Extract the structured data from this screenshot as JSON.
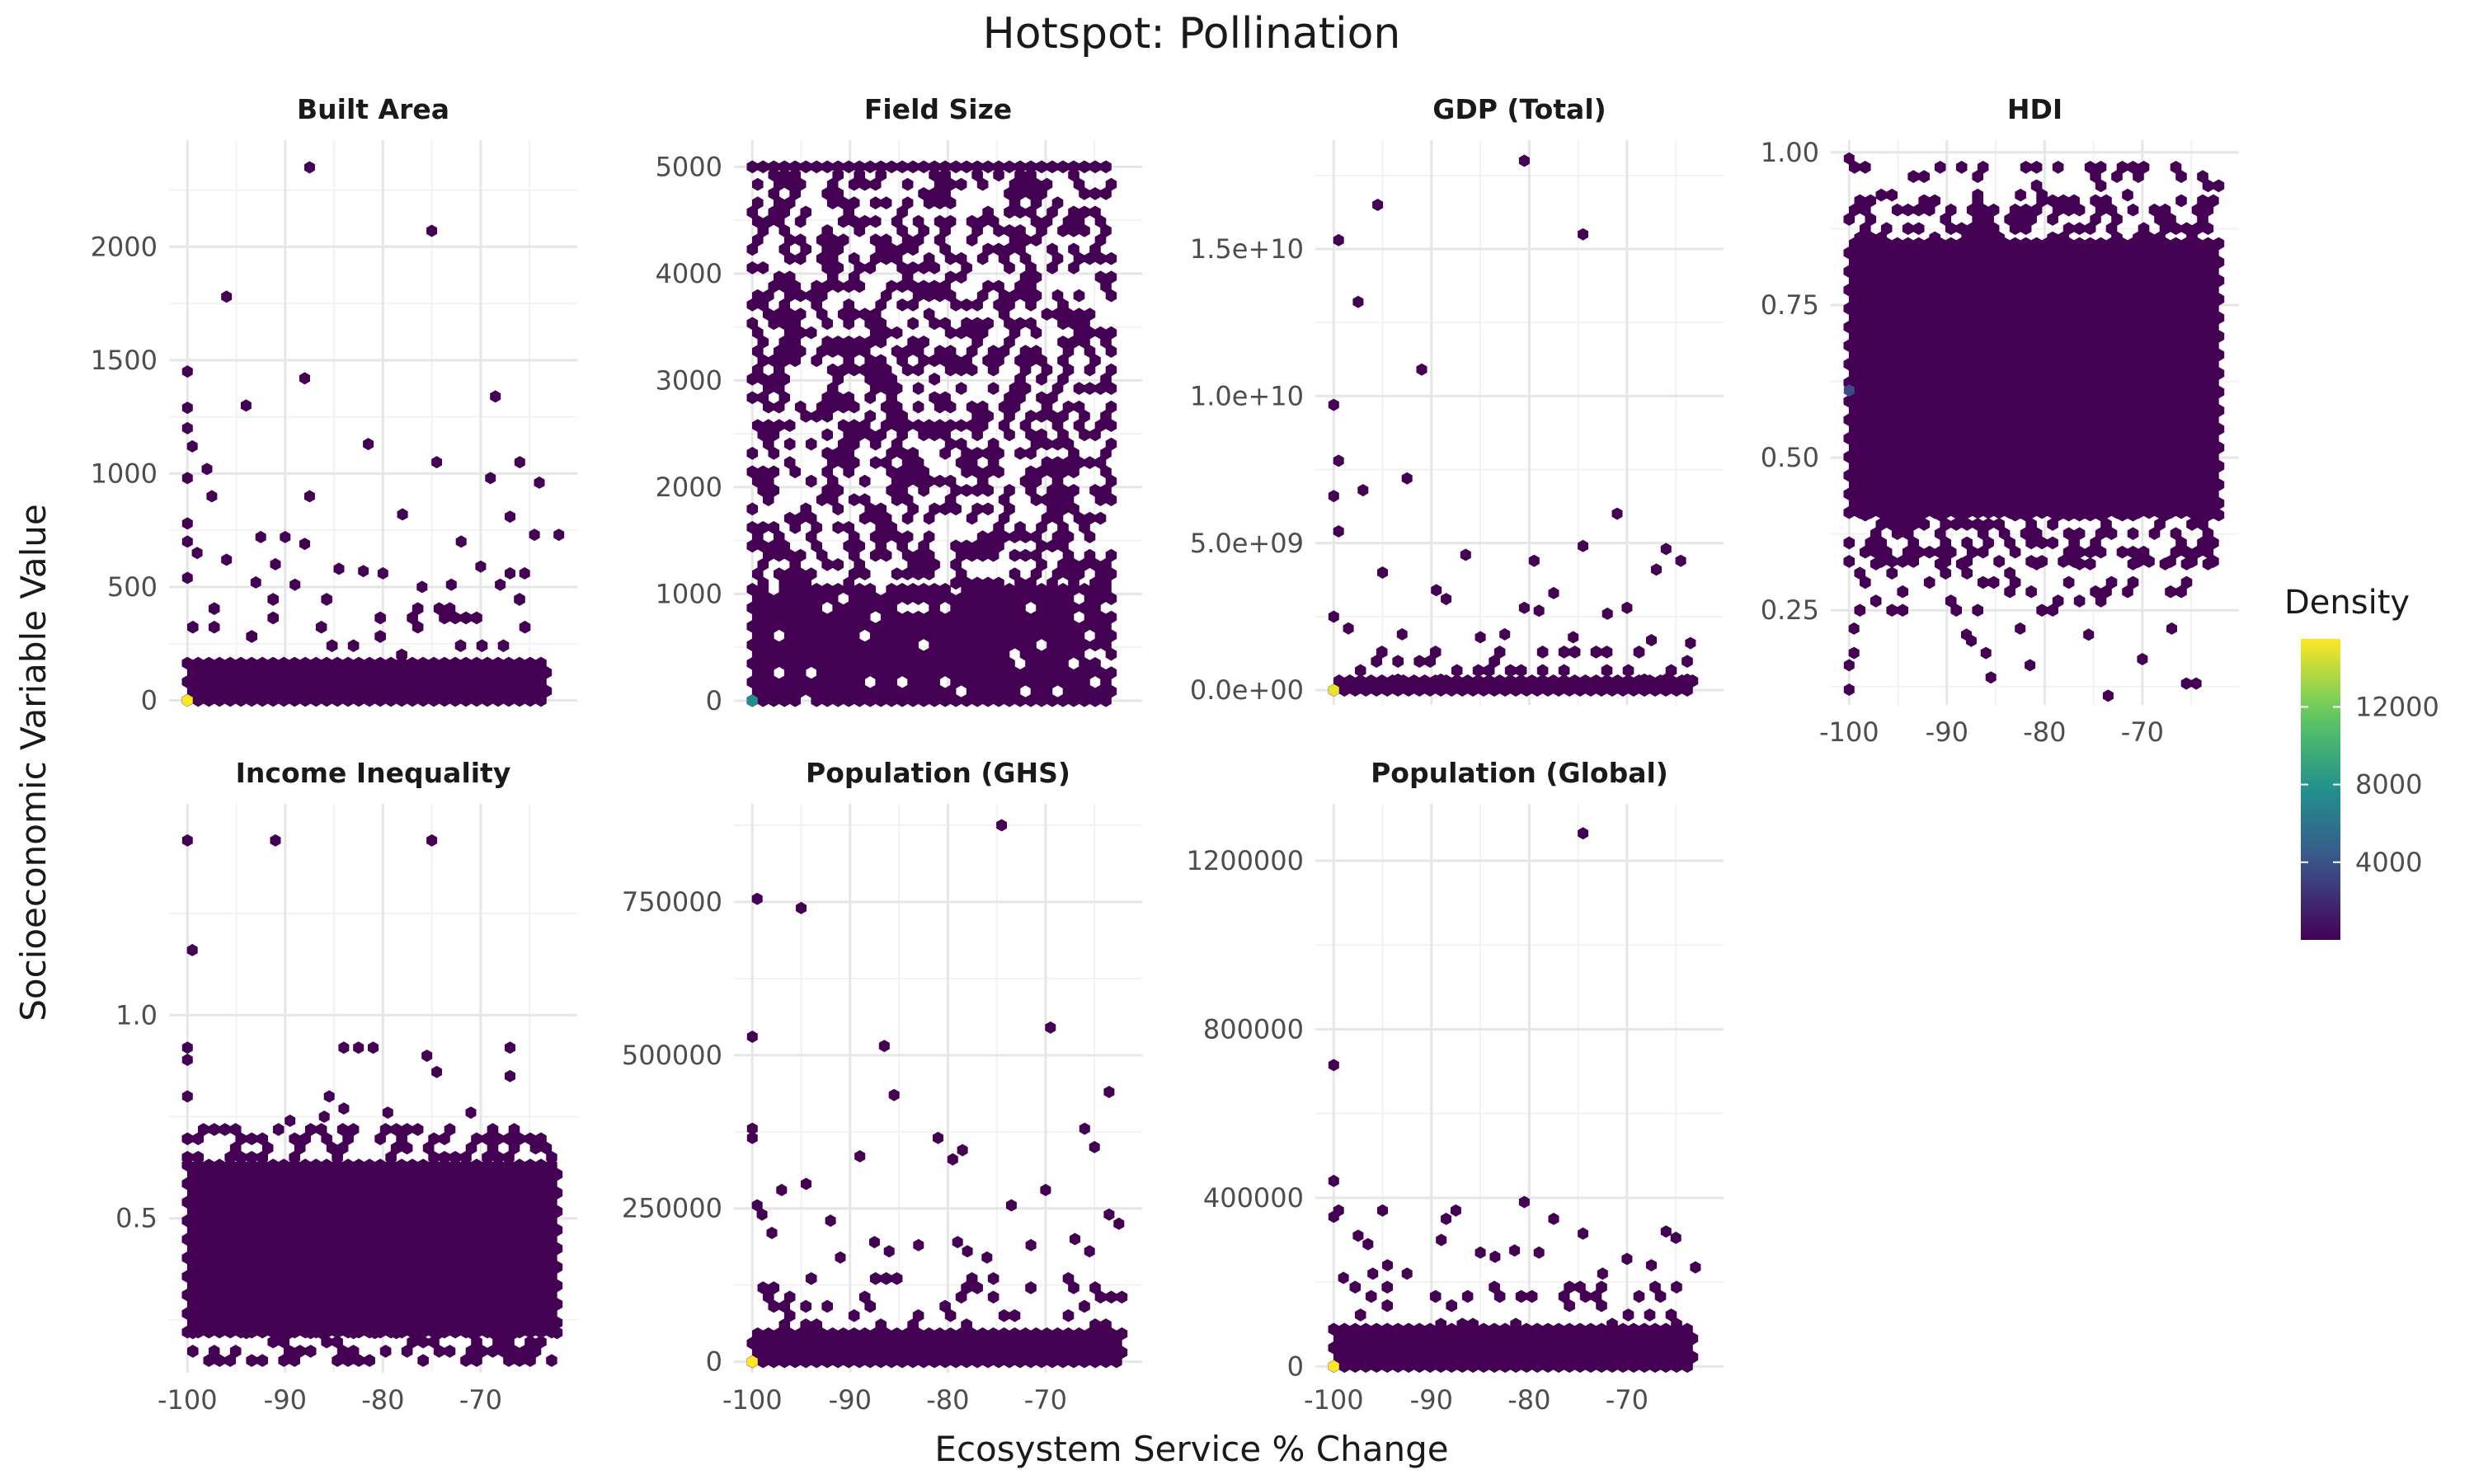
{
  "chart_data": {
    "type": "hexbin",
    "title": "Hotspot: Pollination",
    "xlabel": "Ecosystem Service % Change",
    "ylabel": "Socioeconomic Variable Value",
    "grid": true,
    "legend": {
      "title": "Density",
      "placement": "right",
      "min": 0,
      "max": 15500,
      "ticks": [
        4000,
        8000,
        12000
      ],
      "tick_labels": [
        "4000",
        "8000",
        "12000"
      ],
      "colormap": "viridis",
      "colors": [
        "#440154",
        "#3b528b",
        "#21918c",
        "#5ec962",
        "#fde725"
      ]
    },
    "x_range": [
      -100,
      -62
    ],
    "x_ticks": [
      -100,
      -90,
      -80,
      -70
    ],
    "x_tick_labels": [
      "-100",
      "-90",
      "-80",
      "-70"
    ],
    "panels": [
      {
        "name": "Built Area",
        "ylim": [
          -20,
          2470
        ],
        "y_ticks": [
          0,
          500,
          1000,
          1500,
          2000
        ],
        "y_tick_labels": [
          "0",
          "500",
          "1000",
          "1500",
          "2000"
        ],
        "dense_bands": [
          {
            "x": [
              -100,
              -63
            ],
            "y": [
              0,
              200
            ],
            "fill": 1.0
          },
          {
            "x": [
              -100,
              -63
            ],
            "y": [
              200,
              450
            ],
            "fill": 0.15
          }
        ],
        "points": [
          [
            -87.5,
            2350
          ],
          [
            -75,
            2070
          ],
          [
            -96,
            1780
          ],
          [
            -100,
            1450
          ],
          [
            -88,
            1420
          ],
          [
            -68.5,
            1340
          ],
          [
            -94,
            1300
          ],
          [
            -100,
            1290
          ],
          [
            -100,
            1200
          ],
          [
            -81.5,
            1130
          ],
          [
            -99.5,
            1120
          ],
          [
            -74.5,
            1050
          ],
          [
            -66,
            1050
          ],
          [
            -98,
            1020
          ],
          [
            -100,
            980
          ],
          [
            -69,
            980
          ],
          [
            -64,
            960
          ],
          [
            -97.5,
            900
          ],
          [
            -87.5,
            900
          ],
          [
            -78,
            820
          ],
          [
            -67,
            810
          ],
          [
            -100,
            780
          ],
          [
            -62,
            730
          ],
          [
            -64.5,
            730
          ],
          [
            -92.5,
            720
          ],
          [
            -90,
            720
          ],
          [
            -100,
            700
          ],
          [
            -88,
            690
          ],
          [
            -72,
            700
          ],
          [
            -99,
            650
          ],
          [
            -96,
            620
          ],
          [
            -91,
            600
          ],
          [
            -84.5,
            580
          ],
          [
            -82,
            570
          ],
          [
            -80,
            560
          ],
          [
            -70,
            590
          ],
          [
            -67,
            560
          ],
          [
            -65.5,
            560
          ],
          [
            -100,
            540
          ],
          [
            -93,
            520
          ],
          [
            -89,
            510
          ],
          [
            -76,
            500
          ],
          [
            -73,
            510
          ],
          [
            -68,
            510
          ]
        ],
        "hot": [
          [
            -100,
            0,
            15500
          ]
        ]
      },
      {
        "name": "Field Size",
        "ylim": [
          -40,
          5250
        ],
        "y_ticks": [
          0,
          1000,
          2000,
          3000,
          4000,
          5000
        ],
        "y_tick_labels": [
          "0",
          "1000",
          "2000",
          "3000",
          "4000",
          "5000"
        ],
        "dense_bands": [
          {
            "x": [
              -100,
              -63
            ],
            "y": [
              0,
              1100
            ],
            "fill": 0.92
          },
          {
            "x": [
              -100,
              -63
            ],
            "y": [
              1100,
              5000
            ],
            "fill": 0.5
          },
          {
            "x": [
              -100,
              -63
            ],
            "y": [
              5000,
              5040
            ],
            "fill": 1.0
          }
        ],
        "points": [],
        "hot": [
          [
            -100,
            0,
            7500
          ]
        ]
      },
      {
        "name": "GDP (Total)",
        "ylim": [
          -500000000.0,
          18700000000.0
        ],
        "y_ticks": [
          0,
          5000000000.0,
          10000000000.0,
          15000000000.0
        ],
        "y_tick_labels": [
          "0.0e+00",
          "5.0e+09",
          "1.0e+10",
          "1.5e+10"
        ],
        "dense_bands": [
          {
            "x": [
              -100,
              -63
            ],
            "y": [
              0,
              350000000.0
            ],
            "fill": 1.0
          },
          {
            "x": [
              -100,
              -63
            ],
            "y": [
              350000000.0,
              1300000000.0
            ],
            "fill": 0.2
          }
        ],
        "points": [
          [
            -80.5,
            18000000000.0
          ],
          [
            -99.5,
            15300000000.0
          ],
          [
            -74.5,
            15500000000.0
          ],
          [
            -95.5,
            16500000000.0
          ],
          [
            -97.5,
            13200000000.0
          ],
          [
            -91,
            10900000000.0
          ],
          [
            -100,
            9700000000.0
          ],
          [
            -99.5,
            7800000000.0
          ],
          [
            -92.5,
            7200000000.0
          ],
          [
            -97,
            6800000000.0
          ],
          [
            -100,
            6600000000.0
          ],
          [
            -71,
            6000000000.0
          ],
          [
            -99.5,
            5400000000.0
          ],
          [
            -74.5,
            4900000000.0
          ],
          [
            -66,
            4800000000.0
          ],
          [
            -86.5,
            4600000000.0
          ],
          [
            -79.5,
            4400000000.0
          ],
          [
            -64.5,
            4400000000.0
          ],
          [
            -95,
            4000000000.0
          ],
          [
            -67,
            4100000000.0
          ],
          [
            -89.5,
            3400000000.0
          ],
          [
            -88.5,
            3100000000.0
          ],
          [
            -77.5,
            3300000000.0
          ],
          [
            -80.5,
            2800000000.0
          ],
          [
            -79,
            2700000000.0
          ],
          [
            -70,
            2800000000.0
          ],
          [
            -72,
            2600000000.0
          ],
          [
            -100,
            2500000000.0
          ],
          [
            -98.5,
            2100000000.0
          ],
          [
            -93,
            1900000000.0
          ],
          [
            -85,
            1800000000.0
          ],
          [
            -82.5,
            1900000000.0
          ],
          [
            -75.5,
            1800000000.0
          ],
          [
            -67.5,
            1700000000.0
          ],
          [
            -63.5,
            1600000000.0
          ]
        ],
        "hot": [
          [
            -100,
            0,
            15000
          ]
        ]
      },
      {
        "name": "HDI",
        "ylim": [
          0.095,
          1.02
        ],
        "y_ticks": [
          0.25,
          0.5,
          0.75,
          1.0
        ],
        "y_tick_labels": [
          "0.25",
          "0.50",
          "0.75",
          "1.00"
        ],
        "dense_bands": [
          {
            "x": [
              -100,
              -62
            ],
            "y": [
              0.41,
              0.86
            ],
            "fill": 1.0
          },
          {
            "x": [
              -100,
              -62
            ],
            "y": [
              0.33,
              0.41
            ],
            "fill": 0.55
          },
          {
            "x": [
              -100,
              -62
            ],
            "y": [
              0.86,
              0.93
            ],
            "fill": 0.55
          },
          {
            "x": [
              -100,
              -62
            ],
            "y": [
              0.25,
              0.33
            ],
            "fill": 0.2
          },
          {
            "x": [
              -100,
              -62
            ],
            "y": [
              0.93,
              0.98
            ],
            "fill": 0.2
          }
        ],
        "points": [
          [
            -100,
            0.99
          ],
          [
            -73.5,
            0.11
          ],
          [
            -64.5,
            0.13
          ],
          [
            -65.5,
            0.13
          ],
          [
            -100,
            0.12
          ],
          [
            -85.5,
            0.14
          ],
          [
            -70,
            0.17
          ],
          [
            -86,
            0.18
          ],
          [
            -81.5,
            0.16
          ],
          [
            -87.5,
            0.2
          ],
          [
            -88,
            0.21
          ],
          [
            -82.5,
            0.22
          ],
          [
            -67,
            0.22
          ],
          [
            -75.5,
            0.21
          ],
          [
            -99.5,
            0.18
          ],
          [
            -99.5,
            0.22
          ],
          [
            -100,
            0.16
          ]
        ],
        "hot": [
          [
            -100,
            0.61,
            3500
          ]
        ]
      },
      {
        "name": "Income Inequality",
        "ylim": [
          0.12,
          1.52
        ],
        "y_ticks": [
          0.5,
          1.0
        ],
        "y_tick_labels": [
          "0.5",
          "1.0"
        ],
        "dense_bands": [
          {
            "x": [
              -100,
              -62
            ],
            "y": [
              0.22,
              0.65
            ],
            "fill": 1.0
          },
          {
            "x": [
              -100,
              -62
            ],
            "y": [
              0.65,
              0.72
            ],
            "fill": 0.45
          },
          {
            "x": [
              -100,
              -62
            ],
            "y": [
              0.15,
              0.22
            ],
            "fill": 0.45
          }
        ],
        "points": [
          [
            -100,
            1.43
          ],
          [
            -91,
            1.43
          ],
          [
            -75,
            1.43
          ],
          [
            -99.5,
            1.16
          ],
          [
            -100,
            0.92
          ],
          [
            -100,
            0.89
          ],
          [
            -84,
            0.92
          ],
          [
            -82.5,
            0.92
          ],
          [
            -81,
            0.92
          ],
          [
            -75.5,
            0.9
          ],
          [
            -67,
            0.92
          ],
          [
            -74.5,
            0.86
          ],
          [
            -67,
            0.85
          ],
          [
            -85.5,
            0.8
          ],
          [
            -100,
            0.8
          ],
          [
            -84,
            0.77
          ],
          [
            -79.5,
            0.76
          ],
          [
            -71,
            0.76
          ],
          [
            -86,
            0.75
          ],
          [
            -89.5,
            0.74
          ]
        ],
        "hot": []
      },
      {
        "name": "Population (GHS)",
        "ylim": [
          -18000,
          910000
        ],
        "y_ticks": [
          0,
          250000,
          500000,
          750000
        ],
        "y_tick_labels": [
          "0",
          "250000",
          "500000",
          "750000"
        ],
        "dense_bands": [
          {
            "x": [
              -100,
              -62
            ],
            "y": [
              0,
              60000
            ],
            "fill": 1.0
          },
          {
            "x": [
              -100,
              -62
            ],
            "y": [
              60000,
              150000
            ],
            "fill": 0.2
          }
        ],
        "points": [
          [
            -74.5,
            875000
          ],
          [
            -99.5,
            755000
          ],
          [
            -95,
            740000
          ],
          [
            -69.5,
            545000
          ],
          [
            -100,
            530000
          ],
          [
            -86.5,
            515000
          ],
          [
            -85.5,
            435000
          ],
          [
            -63.5,
            440000
          ],
          [
            -66,
            380000
          ],
          [
            -100,
            380000
          ],
          [
            -100,
            365000
          ],
          [
            -81,
            365000
          ],
          [
            -78.5,
            345000
          ],
          [
            -89,
            335000
          ],
          [
            -79.5,
            330000
          ],
          [
            -65,
            350000
          ],
          [
            -97,
            280000
          ],
          [
            -94.5,
            290000
          ],
          [
            -70,
            280000
          ],
          [
            -73.5,
            255000
          ],
          [
            -62.5,
            225000
          ],
          [
            -99,
            240000
          ],
          [
            -99.5,
            255000
          ],
          [
            -92,
            230000
          ],
          [
            -87.5,
            195000
          ],
          [
            -63.5,
            240000
          ],
          [
            -98,
            210000
          ],
          [
            -91,
            170000
          ],
          [
            -86,
            180000
          ],
          [
            -83,
            190000
          ],
          [
            -79,
            195000
          ],
          [
            -78,
            180000
          ],
          [
            -71.5,
            190000
          ],
          [
            -67,
            200000
          ],
          [
            -65.5,
            180000
          ],
          [
            -76,
            170000
          ]
        ],
        "hot": [
          [
            -100,
            0,
            15500
          ]
        ]
      },
      {
        "name": "Population (Global)",
        "ylim": [
          -15000,
          1335000
        ],
        "y_ticks": [
          0,
          400000,
          800000,
          1200000
        ],
        "y_tick_labels": [
          "0",
          "400000",
          "800000",
          "1200000"
        ],
        "dense_bands": [
          {
            "x": [
              -100,
              -63
            ],
            "y": [
              0,
              100000
            ],
            "fill": 1.0
          },
          {
            "x": [
              -100,
              -63
            ],
            "y": [
              100000,
              190000
            ],
            "fill": 0.2
          }
        ],
        "points": [
          [
            -74.5,
            1265000
          ],
          [
            -100,
            715000
          ],
          [
            -100,
            440000
          ],
          [
            -80.5,
            390000
          ],
          [
            -99.5,
            370000
          ],
          [
            -100,
            355000
          ],
          [
            -95,
            370000
          ],
          [
            -87.5,
            370000
          ],
          [
            -88.5,
            350000
          ],
          [
            -77.5,
            350000
          ],
          [
            -74.5,
            315000
          ],
          [
            -66,
            320000
          ],
          [
            -65,
            305000
          ],
          [
            -97.5,
            310000
          ],
          [
            -96.5,
            290000
          ],
          [
            -89,
            300000
          ],
          [
            -85,
            270000
          ],
          [
            -83.5,
            260000
          ],
          [
            -81.5,
            275000
          ],
          [
            -79,
            270000
          ],
          [
            -70,
            255000
          ],
          [
            -67.5,
            240000
          ],
          [
            -63,
            235000
          ],
          [
            -94.5,
            240000
          ],
          [
            -92.5,
            220000
          ],
          [
            -96,
            220000
          ],
          [
            -72.5,
            220000
          ],
          [
            -99,
            210000
          ]
        ],
        "hot": [
          [
            -100,
            0,
            15500
          ]
        ]
      }
    ]
  }
}
